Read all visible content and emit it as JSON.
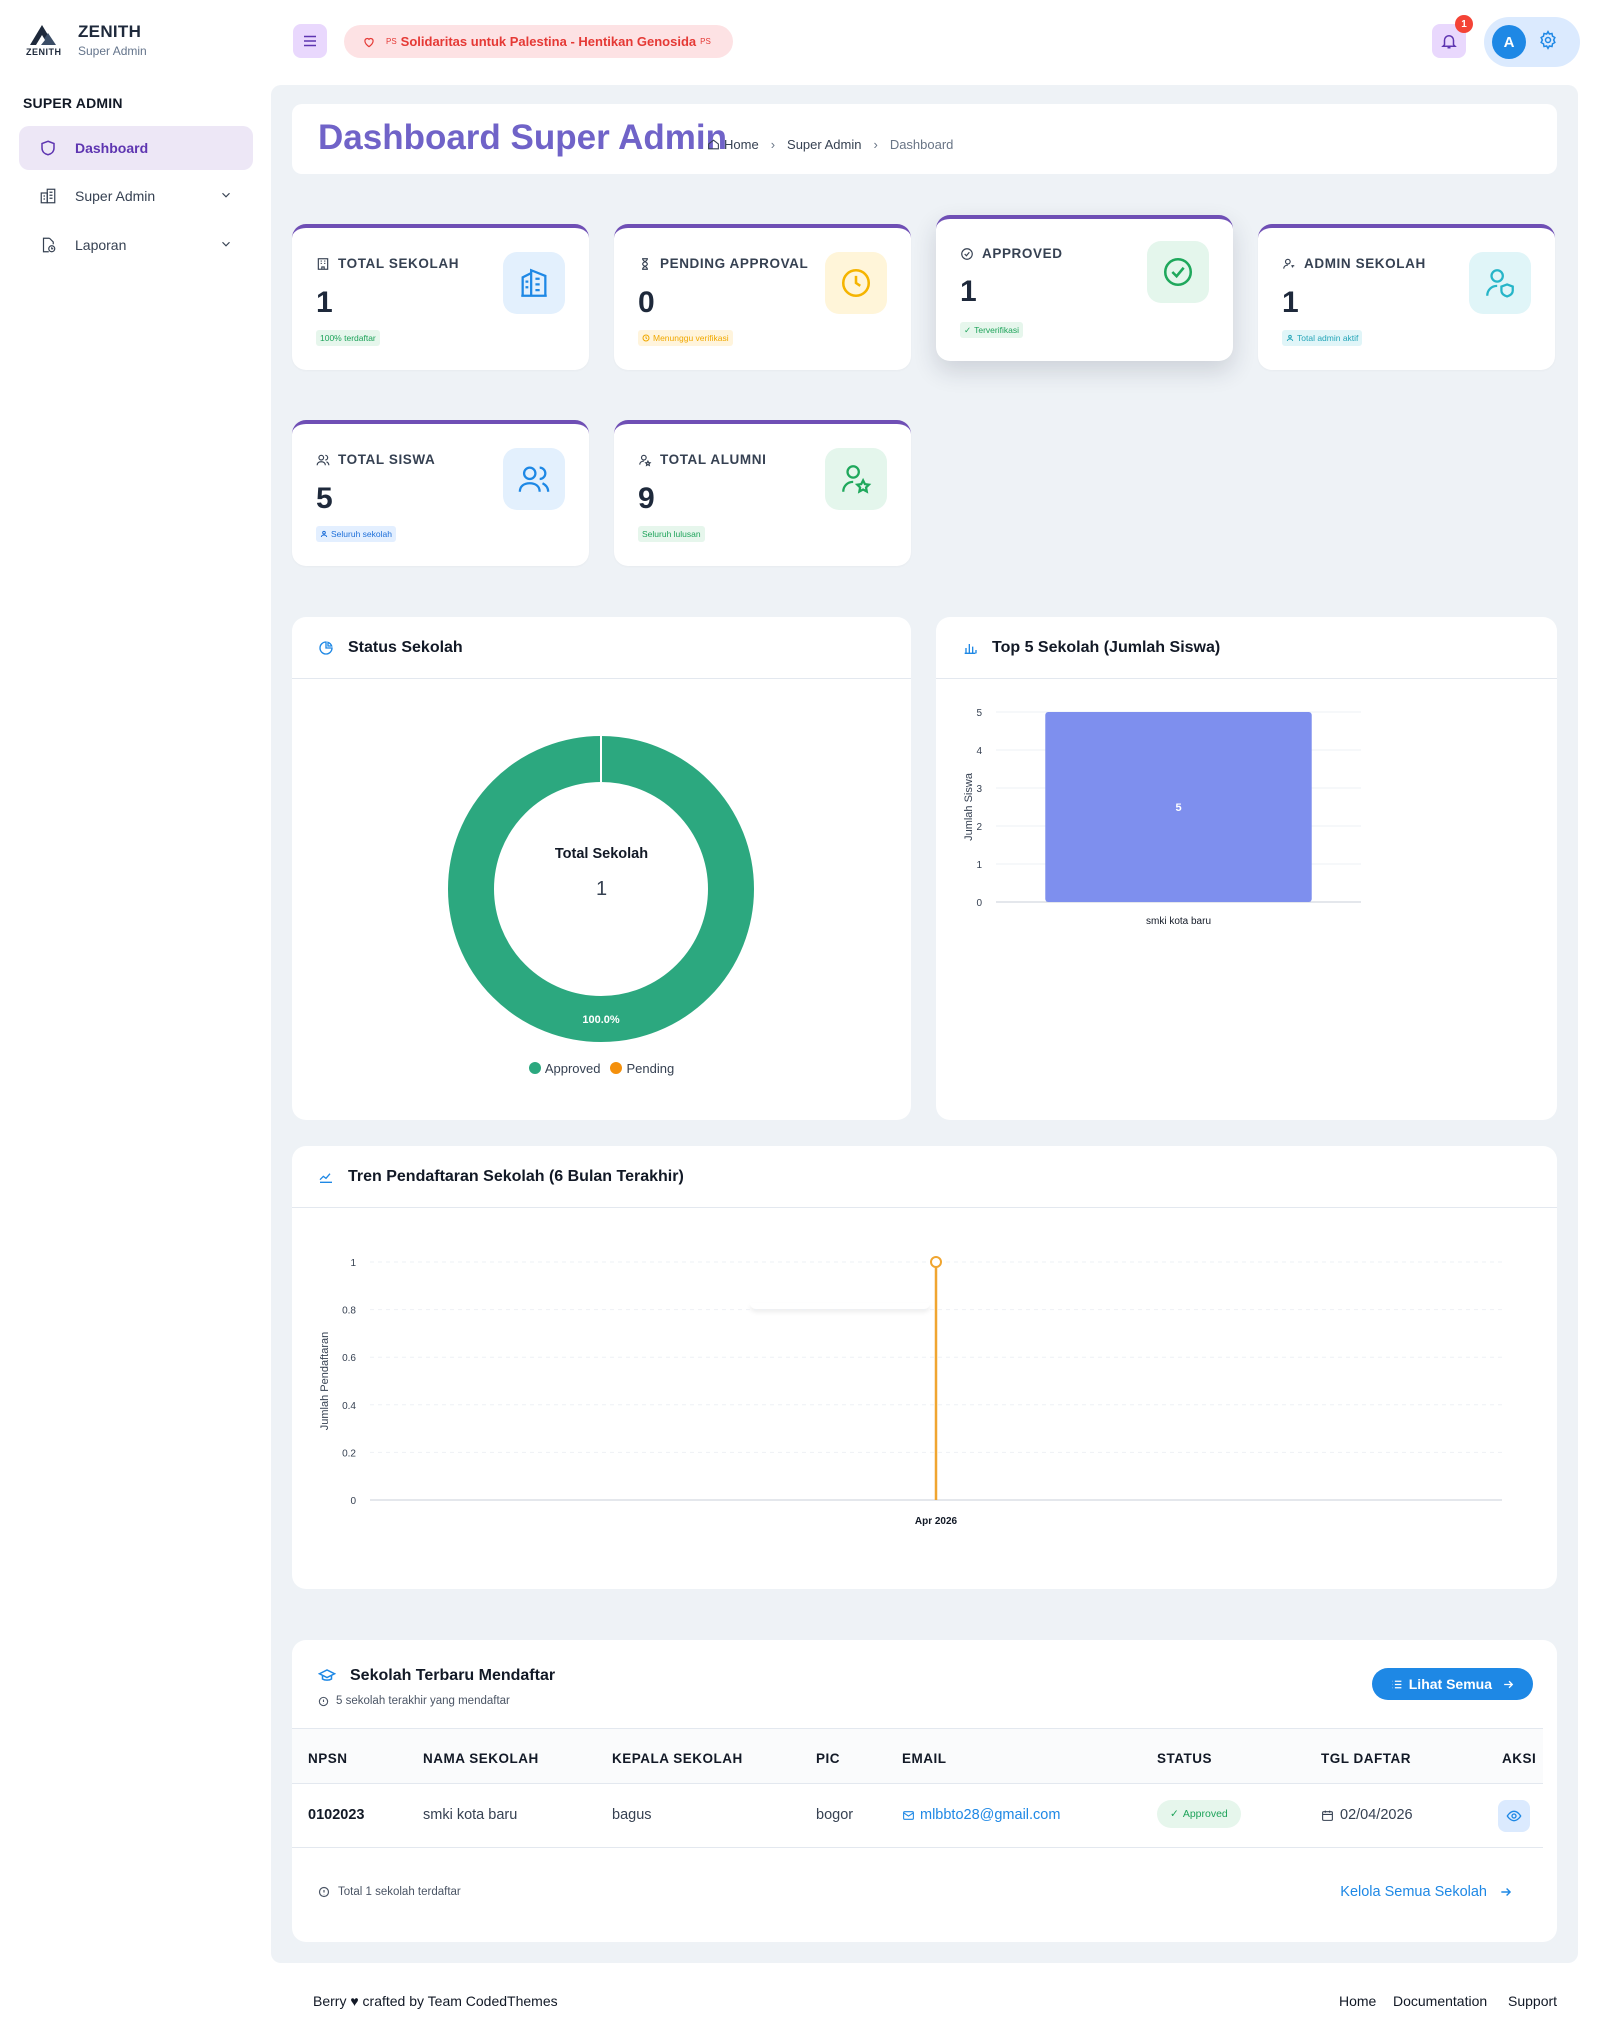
{
  "brand": {
    "name": "ZENITH",
    "logo_text": "ZENITH",
    "subtitle": "Super Admin"
  },
  "sidebar": {
    "section": "SUPER ADMIN",
    "items": [
      {
        "label": "Dashboard",
        "icon": "shield-icon"
      },
      {
        "label": "Super Admin",
        "icon": "building-icon"
      },
      {
        "label": "Laporan",
        "icon": "file-report-icon"
      }
    ]
  },
  "header": {
    "banner_ps_left": "PS",
    "banner": "Solidaritas untuk Palestina - Hentikan Genosida",
    "banner_ps_right": "PS",
    "notification_count": "1",
    "avatar_initial": "A"
  },
  "page": {
    "title": "Dashboard Super Admin",
    "breadcrumbs": [
      "Home",
      "Super Admin",
      "Dashboard"
    ]
  },
  "stats": [
    {
      "label": "TOTAL SEKOLAH",
      "value": "1",
      "tag": "100% terdaftar"
    },
    {
      "label": "PENDING APPROVAL",
      "value": "0",
      "tag": "Menunggu verifikasi"
    },
    {
      "label": "APPROVED",
      "value": "1",
      "tag": "Terverifikasi"
    },
    {
      "label": "ADMIN SEKOLAH",
      "value": "1",
      "tag": "Total admin aktif"
    },
    {
      "label": "TOTAL SISWA",
      "value": "5",
      "tag": "Seluruh sekolah"
    },
    {
      "label": "TOTAL ALUMNI",
      "value": "9",
      "tag": "Seluruh lulusan"
    }
  ],
  "panels": {
    "status": {
      "title": "Status Sekolah",
      "center_label": "Total Sekolah",
      "center_value": "1"
    },
    "top5": {
      "title": "Top 5 Sekolah (Jumlah Siswa)"
    },
    "trend": {
      "title": "Tren Pendaftaran Sekolah (6 Bulan Terakhir)"
    }
  },
  "chart_data": [
    {
      "type": "pie",
      "title": "Status Sekolah",
      "categories": [
        "Approved",
        "Pending"
      ],
      "values": [
        1,
        0
      ],
      "colors": [
        "#2ca87f",
        "#f4900c"
      ],
      "data_labels": [
        "100.0%"
      ],
      "legend": "bottom"
    },
    {
      "type": "bar",
      "title": "Top 5 Sekolah (Jumlah Siswa)",
      "categories": [
        "smki kota baru"
      ],
      "values": [
        5
      ],
      "ylabel": "Jumlah Siswa",
      "ylim": [
        0,
        5
      ],
      "yticks": [
        "0",
        "1",
        "2",
        "3",
        "4",
        "5"
      ],
      "data_labels": [
        "5"
      ],
      "color": "#7e8fee",
      "grid": true
    },
    {
      "type": "line",
      "title": "Tren Pendaftaran Sekolah (6 Bulan Terakhir)",
      "x": [
        "Apr 2026"
      ],
      "values": [
        1
      ],
      "ylabel": "Jumlah Pendaftaran",
      "ylim": [
        0,
        1
      ],
      "yticks": [
        "0",
        "0.2",
        "0.4",
        "0.6",
        "0.8",
        "1"
      ],
      "color": "#f0a530",
      "grid": true
    }
  ],
  "table": {
    "title": "Sekolah Terbaru Mendaftar",
    "subtitle": "5 sekolah terakhir yang mendaftar",
    "button": "Lihat Semua",
    "columns": [
      "NPSN",
      "NAMA SEKOLAH",
      "KEPALA SEKOLAH",
      "PIC",
      "EMAIL",
      "STATUS",
      "TGL DAFTAR",
      "AKSI"
    ],
    "rows": [
      {
        "npsn": "0102023",
        "nama": "smki kota baru",
        "kepala": "bagus",
        "pic": "bogor",
        "email": "mlbbto28@gmail.com",
        "status": "Approved",
        "tgl": "02/04/2026"
      }
    ],
    "footer_note": "Total 1 sekolah terdaftar",
    "footer_link": "Kelola Semua Sekolah"
  },
  "footer": {
    "left": "Berry ♥ crafted by Team CodedThemes",
    "links": [
      "Home",
      "Documentation",
      "Support"
    ]
  }
}
